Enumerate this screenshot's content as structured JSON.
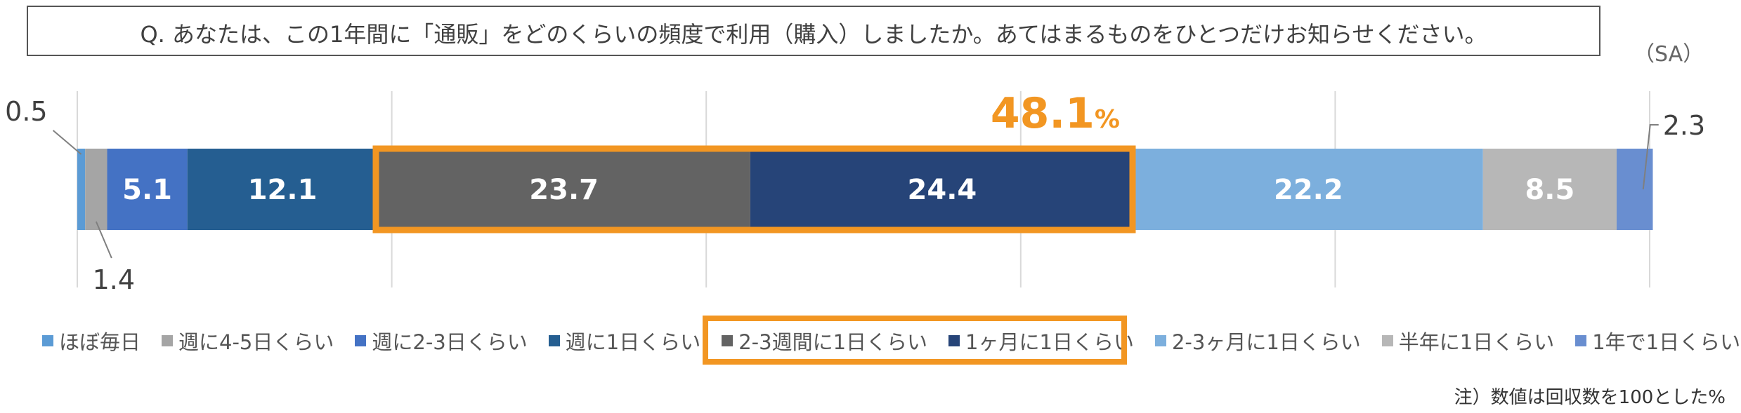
{
  "question": "Q.  あなたは、この1年間に「通販」をどのくらいの頻度で利用（購入）しましたか。あてはまるものをひとつだけお知らせください。",
  "sa_label": "（SA）",
  "footnote": "注）数値は回収数を100とした%",
  "highlight": {
    "value": "48.1",
    "unit": "%",
    "color": "#F29622"
  },
  "chart_data": {
    "type": "bar",
    "orientation": "horizontal-stacked-100",
    "xlim": [
      0,
      100
    ],
    "grid": true,
    "legend_position": "bottom",
    "series": [
      {
        "name": "ほぼ毎日",
        "value": 0.5,
        "color": "#5B9BD5",
        "label": "0.5",
        "label_style": "callout"
      },
      {
        "name": "週に4-5日くらい",
        "value": 1.4,
        "color": "#A5A5A5",
        "label": "1.4",
        "label_style": "callout"
      },
      {
        "name": "週に2-3日くらい",
        "value": 5.1,
        "color": "#4472C4",
        "label": "5.1",
        "label_style": "inside"
      },
      {
        "name": "週に1日くらい",
        "value": 12.1,
        "color": "#255E91",
        "label": "12.1",
        "label_style": "inside"
      },
      {
        "name": "2-3週間に1日くらい",
        "value": 23.7,
        "color": "#636363",
        "label": "23.7",
        "label_style": "inside"
      },
      {
        "name": "1ヶ月に1日くらい",
        "value": 24.4,
        "color": "#264478",
        "label": "24.4",
        "label_style": "inside"
      },
      {
        "name": "2-3ヶ月に1日くらい",
        "value": 22.2,
        "color": "#7CAFDD",
        "label": "22.2",
        "label_style": "inside"
      },
      {
        "name": "半年に1日くらい",
        "value": 8.5,
        "color": "#B7B7B7",
        "label": "8.5",
        "label_style": "inside"
      },
      {
        "name": "1年で1日くらい",
        "value": 2.3,
        "color": "#698ED0",
        "label": "2.3",
        "label_style": "callout"
      }
    ]
  }
}
